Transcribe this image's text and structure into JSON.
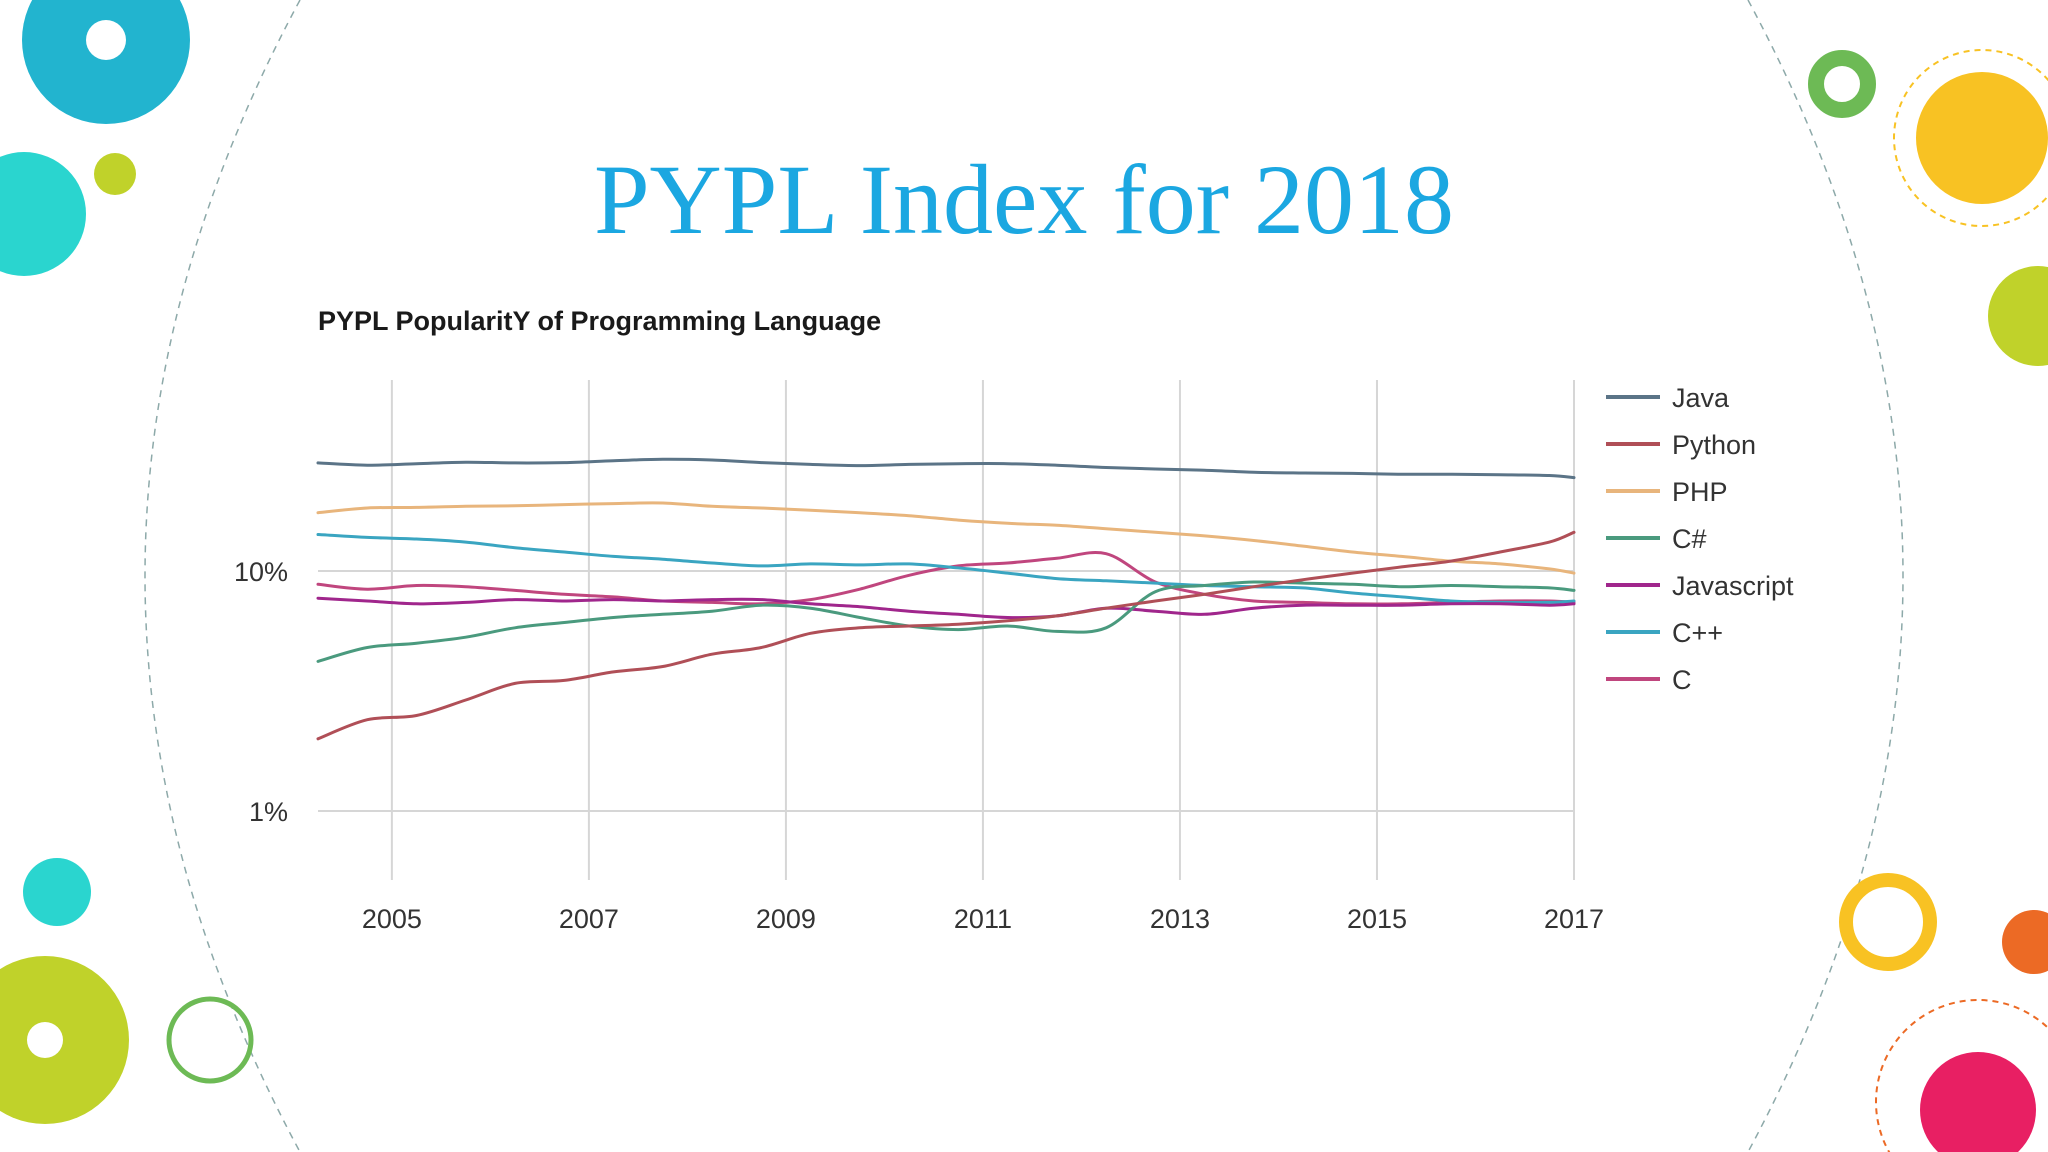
{
  "slide": {
    "title": "PYPL Index for 2018"
  },
  "colors": {
    "title": "#1ba7e1",
    "accent_blue": "#22b4cf",
    "accent_teal": "#2ad5cf",
    "accent_lime": "#c0d22a",
    "accent_green": "#6dba55",
    "accent_yellow": "#f8c223",
    "accent_orange": "#ec6a25",
    "accent_pink": "#e81f63"
  },
  "chart_data": {
    "type": "line",
    "title": "PYPL PopularitY of Programming Language",
    "y_scale": "log",
    "ylim": [
      0.6,
      40
    ],
    "y_ticks": [
      {
        "value": 1,
        "label": "1%"
      },
      {
        "value": 10,
        "label": "10%"
      }
    ],
    "xlim": [
      2004.25,
      2017
    ],
    "x_ticks": [
      2005,
      2007,
      2009,
      2011,
      2013,
      2015,
      2017
    ],
    "x_tick_labels": [
      "2005",
      "2007",
      "2009",
      "2011",
      "2013",
      "2015",
      "2017"
    ],
    "grid": "vertical lines at x ticks, horizontal lines at y ticks",
    "legend_position": "right",
    "x": [
      2004.25,
      2004.75,
      2005.25,
      2005.75,
      2006.25,
      2006.75,
      2007.25,
      2007.75,
      2008.25,
      2008.75,
      2009.25,
      2009.75,
      2010.25,
      2010.75,
      2011.25,
      2011.75,
      2012.25,
      2012.75,
      2013.25,
      2013.75,
      2014.25,
      2014.75,
      2015.25,
      2015.75,
      2016.25,
      2016.75,
      2017
    ],
    "series": [
      {
        "name": "Java",
        "color": "#5b7487",
        "values": [
          28.2,
          27.6,
          28.0,
          28.4,
          28.2,
          28.3,
          28.8,
          29.2,
          29.0,
          28.3,
          27.8,
          27.5,
          27.8,
          28.0,
          28.0,
          27.6,
          27.0,
          26.6,
          26.3,
          25.8,
          25.6,
          25.5,
          25.3,
          25.3,
          25.2,
          25.0,
          24.5
        ]
      },
      {
        "name": "Python",
        "color": "#b04f57",
        "values": [
          2.0,
          2.4,
          2.5,
          2.9,
          3.4,
          3.5,
          3.8,
          4.0,
          4.5,
          4.8,
          5.5,
          5.8,
          5.9,
          6.0,
          6.2,
          6.5,
          7.0,
          7.5,
          8.0,
          8.6,
          9.2,
          9.8,
          10.4,
          11.0,
          12.0,
          13.2,
          14.5
        ]
      },
      {
        "name": "PHP",
        "color": "#e8b57c",
        "values": [
          17.5,
          18.3,
          18.4,
          18.6,
          18.7,
          18.9,
          19.1,
          19.2,
          18.6,
          18.3,
          17.9,
          17.5,
          17.0,
          16.3,
          15.8,
          15.5,
          15.0,
          14.5,
          14.0,
          13.4,
          12.7,
          12.0,
          11.5,
          11.0,
          10.7,
          10.2,
          9.8
        ]
      },
      {
        "name": "C#",
        "color": "#4a9a7e",
        "values": [
          4.2,
          4.8,
          5.0,
          5.3,
          5.8,
          6.1,
          6.4,
          6.6,
          6.8,
          7.2,
          7.0,
          6.4,
          5.9,
          5.7,
          5.9,
          5.6,
          5.8,
          8.2,
          8.7,
          9.0,
          8.9,
          8.8,
          8.6,
          8.7,
          8.6,
          8.5,
          8.3
        ]
      },
      {
        "name": "Javascript",
        "color": "#a0268c",
        "values": [
          7.7,
          7.5,
          7.3,
          7.4,
          7.6,
          7.5,
          7.6,
          7.5,
          7.6,
          7.6,
          7.3,
          7.1,
          6.8,
          6.6,
          6.4,
          6.5,
          7.0,
          6.8,
          6.6,
          7.0,
          7.2,
          7.2,
          7.2,
          7.3,
          7.3,
          7.2,
          7.3
        ]
      },
      {
        "name": "C++",
        "color": "#3aa5c1",
        "values": [
          14.2,
          13.8,
          13.6,
          13.2,
          12.5,
          12.0,
          11.5,
          11.2,
          10.8,
          10.5,
          10.7,
          10.6,
          10.7,
          10.3,
          9.8,
          9.3,
          9.1,
          8.9,
          8.7,
          8.6,
          8.5,
          8.1,
          7.8,
          7.5,
          7.4,
          7.4,
          7.5
        ]
      },
      {
        "name": "C",
        "color": "#c0467e",
        "values": [
          8.8,
          8.4,
          8.7,
          8.6,
          8.3,
          8.0,
          7.8,
          7.5,
          7.4,
          7.3,
          7.6,
          8.4,
          9.6,
          10.5,
          10.8,
          11.3,
          11.8,
          9.0,
          8.0,
          7.5,
          7.4,
          7.3,
          7.3,
          7.4,
          7.5,
          7.5,
          7.4
        ]
      }
    ]
  }
}
